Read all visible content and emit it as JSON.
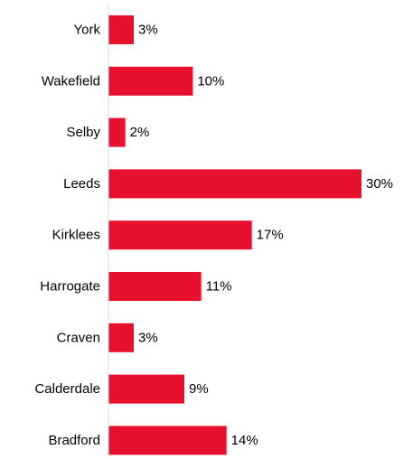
{
  "chart_data": {
    "type": "bar",
    "orientation": "horizontal",
    "title": "",
    "xlabel": "",
    "ylabel": "",
    "categories": [
      "York",
      "Wakefield",
      "Selby",
      "Leeds",
      "Kirklees",
      "Harrogate",
      "Craven",
      "Calderdale",
      "Bradford"
    ],
    "values": [
      3,
      10,
      2,
      30,
      17,
      11,
      3,
      9,
      14
    ],
    "value_labels": [
      "3%",
      "10%",
      "2%",
      "30%",
      "17%",
      "11%",
      "3%",
      "9%",
      "14%"
    ],
    "unit": "%",
    "xlim": [
      0,
      30
    ],
    "grid": false,
    "legend": "none",
    "bar_color": "#e8112d",
    "axis_color": "#d9d9d9"
  }
}
